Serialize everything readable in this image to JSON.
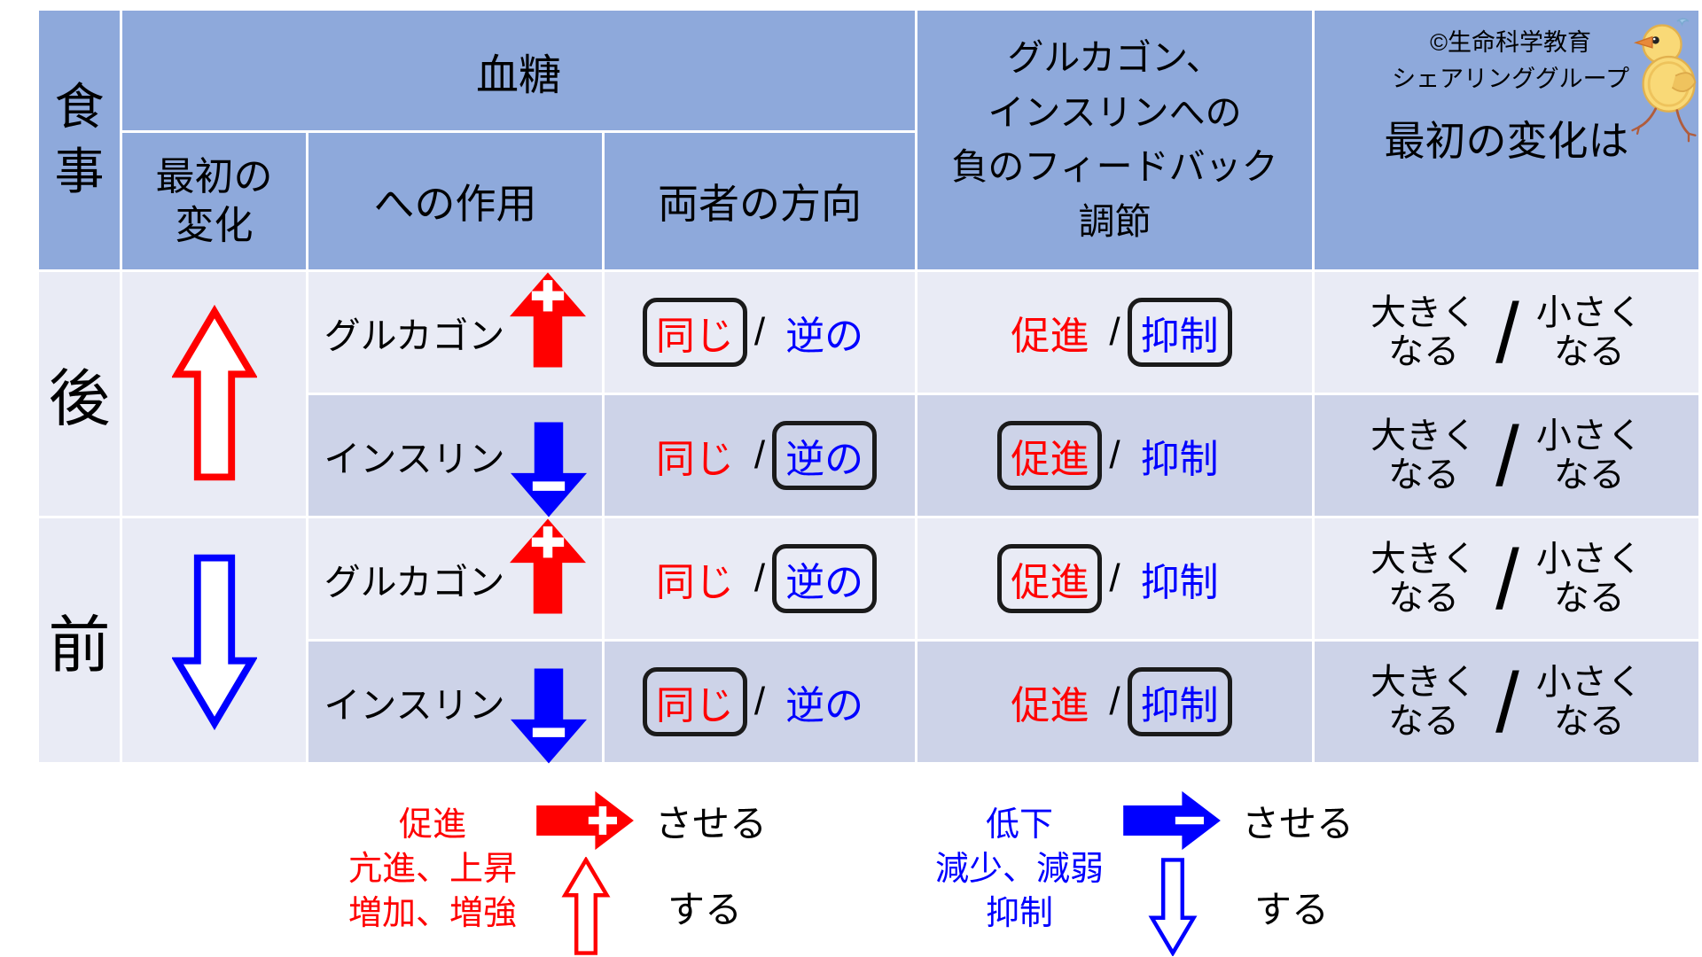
{
  "colors": {
    "header_bg": "#8ea9db",
    "row_light": "#e9ebf5",
    "row_dark": "#cdd3e8",
    "red": "#ff0000",
    "blue": "#0000ff",
    "box_border": "#1a1a1a",
    "text": "#000000",
    "page_bg": "#ffffff"
  },
  "credit": {
    "text": "©生命科学教育\nシェアリンググループ",
    "mascot_icon": "chick-doodle"
  },
  "table": {
    "separator": "/",
    "header": {
      "meal": "食\n事",
      "blood_sugar": "血糖",
      "initial_change": "最初の\n変化",
      "action_on": "への作用",
      "direction_of_both": "両者の方向",
      "negative_feedback": "グルカゴン、\nインスリンへの\n負のフィードバック\n調節",
      "initial_change_is": "最初の変化は"
    },
    "sections": [
      {
        "meal": "後",
        "initial_change_arrow": "red-up-hollow"
      },
      {
        "meal": "前",
        "initial_change_arrow": "blue-down-hollow"
      }
    ],
    "rows": [
      {
        "section": "後",
        "hormone": "グルカゴン",
        "arrow_icon": "red-up-plus",
        "direction": {
          "same": "同じ",
          "opposite": "逆の",
          "boxed": "same"
        },
        "feedback": {
          "promote": "促進",
          "suppress": "抑制",
          "boxed": "suppress"
        },
        "result": {
          "bigger": "大きく\nなる",
          "smaller": "小さく\nなる",
          "boxed": "smaller"
        }
      },
      {
        "section": "後",
        "hormone": "インスリン",
        "arrow_icon": "blue-down-minus",
        "direction": {
          "same": "同じ",
          "opposite": "逆の",
          "boxed": "opposite"
        },
        "feedback": {
          "promote": "促進",
          "suppress": "抑制",
          "boxed": "promote"
        },
        "result": {
          "bigger": "大きく\nなる",
          "smaller": "小さく\nなる",
          "boxed": "smaller"
        }
      },
      {
        "section": "前",
        "hormone": "グルカゴン",
        "arrow_icon": "red-up-plus",
        "direction": {
          "same": "同じ",
          "opposite": "逆の",
          "boxed": "opposite"
        },
        "feedback": {
          "promote": "促進",
          "suppress": "抑制",
          "boxed": "promote"
        },
        "result": {
          "bigger": "大きく\nなる",
          "smaller": "小さく\nなる",
          "boxed": "smaller"
        }
      },
      {
        "section": "前",
        "hormone": "インスリン",
        "arrow_icon": "blue-down-minus",
        "direction": {
          "same": "同じ",
          "opposite": "逆の",
          "boxed": "same"
        },
        "feedback": {
          "promote": "促進",
          "suppress": "抑制",
          "boxed": "suppress"
        },
        "result": {
          "bigger": "大きく\nなる",
          "smaller": "小さく\nなる",
          "boxed": "smaller"
        }
      }
    ]
  },
  "legend": {
    "red": {
      "terms": "促進\n亢進、上昇\n増加、増強",
      "solid_arrow": "red-right-plus",
      "solid_label": "させる",
      "hollow_arrow": "red-up-hollow",
      "hollow_label": "する"
    },
    "blue": {
      "terms": "低下\n減少、減弱\n抑制",
      "solid_arrow": "blue-right-minus",
      "solid_label": "させる",
      "hollow_arrow": "blue-down-hollow",
      "hollow_label": "する"
    }
  }
}
